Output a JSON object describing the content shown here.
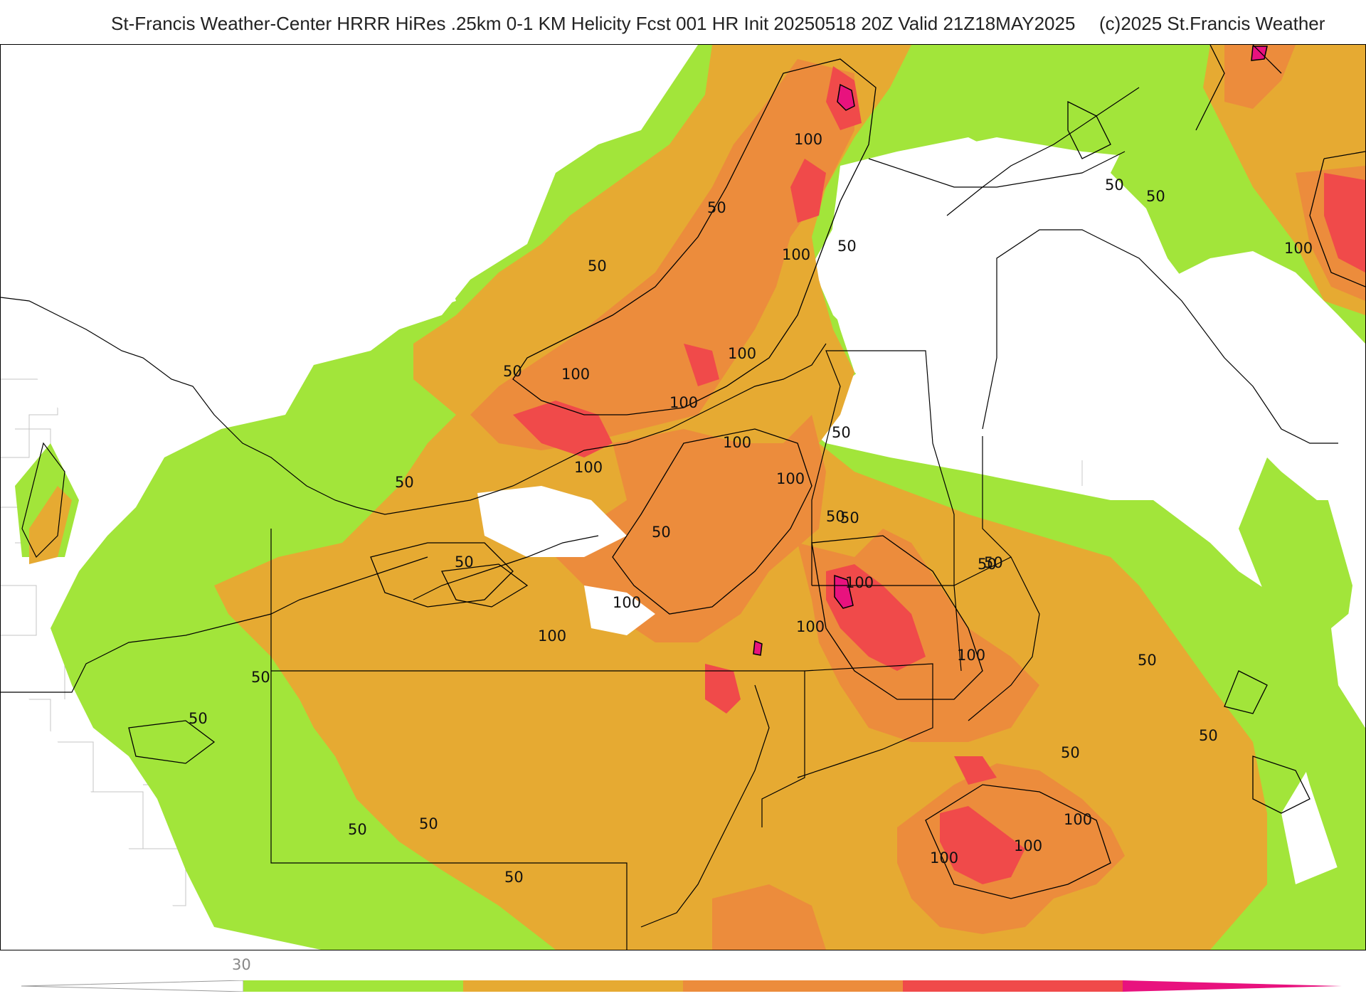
{
  "header": {
    "title": "St-Francis Weather-Center HRRR HiRes .25km 0-1 KM Helicity Fcst 001 HR Init 20250518 20Z  Valid 21Z18MAY2025",
    "copyright": "(c)2025 St.Francis Weather"
  },
  "colors": {
    "band_50": "#a2e53a",
    "band_100": "#e6aa32",
    "band_150": "#ec8c3c",
    "band_200": "#f04a4a",
    "band_250": "#e8127e",
    "land_border": "#000000",
    "county_border": "#bbbbbb"
  },
  "contour_labels": [
    {
      "id": "c1",
      "text": "100"
    },
    {
      "id": "c2",
      "text": "50"
    },
    {
      "id": "c3",
      "text": "50"
    },
    {
      "id": "c4",
      "text": "100"
    },
    {
      "id": "c5",
      "text": "50"
    },
    {
      "id": "c6",
      "text": "50"
    },
    {
      "id": "c7",
      "text": "50"
    },
    {
      "id": "c8",
      "text": "100"
    },
    {
      "id": "c9",
      "text": "100"
    },
    {
      "id": "c10",
      "text": "50"
    },
    {
      "id": "c11",
      "text": "100"
    },
    {
      "id": "c12",
      "text": "100"
    },
    {
      "id": "c13",
      "text": "100"
    },
    {
      "id": "c14",
      "text": "50"
    },
    {
      "id": "c15",
      "text": "100"
    },
    {
      "id": "c16",
      "text": "50"
    },
    {
      "id": "c17",
      "text": "100"
    },
    {
      "id": "c18",
      "text": "50"
    },
    {
      "id": "c19",
      "text": "50"
    },
    {
      "id": "c20",
      "text": "50"
    },
    {
      "id": "c21",
      "text": "100"
    },
    {
      "id": "c22",
      "text": "50"
    },
    {
      "id": "c23",
      "text": "100"
    },
    {
      "id": "c24",
      "text": "100"
    },
    {
      "id": "c25",
      "text": "100"
    },
    {
      "id": "c26",
      "text": "50"
    },
    {
      "id": "c27",
      "text": "50"
    },
    {
      "id": "c28",
      "text": "50"
    },
    {
      "id": "c29",
      "text": "100"
    },
    {
      "id": "c30",
      "text": "50"
    },
    {
      "id": "c31",
      "text": "50"
    },
    {
      "id": "c32",
      "text": "100"
    },
    {
      "id": "c33",
      "text": "100"
    },
    {
      "id": "c34",
      "text": "50"
    },
    {
      "id": "c35",
      "text": "50"
    },
    {
      "id": "c36",
      "text": "100"
    },
    {
      "id": "c37",
      "text": "50"
    },
    {
      "id": "c38",
      "text": "50"
    },
    {
      "id": "c39",
      "text": "50"
    }
  ],
  "colorbar": {
    "tick_label": "30"
  }
}
